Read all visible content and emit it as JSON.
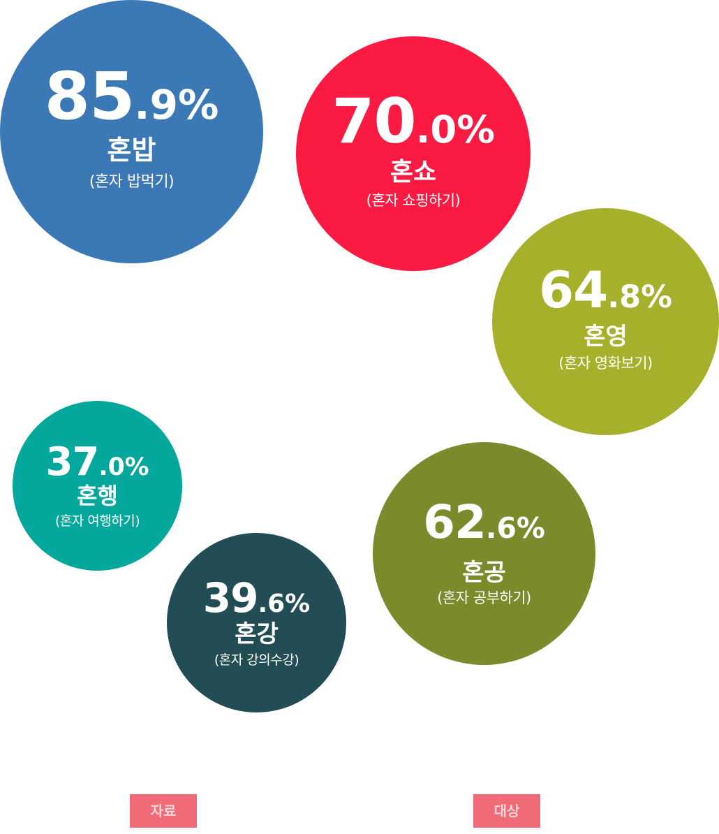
{
  "chart_data": {
    "type": "bubble",
    "series": [
      {
        "value": 85.9,
        "int": "85",
        "dec": ".9%",
        "name": "혼밥",
        "desc": "(혼자 밥먹기)",
        "color": "#3a78b6"
      },
      {
        "value": 70.0,
        "int": "70",
        "dec": ".0%",
        "name": "혼쇼",
        "desc": "(혼자 쇼핑하기)",
        "color": "#fb1b42"
      },
      {
        "value": 64.8,
        "int": "64",
        "dec": ".8%",
        "name": "혼영",
        "desc": "(혼자 영화보기)",
        "color": "#a6b02a"
      },
      {
        "value": 37.0,
        "int": "37",
        "dec": ".0%",
        "name": "혼행",
        "desc": "(혼자 여행하기)",
        "color": "#03a79c"
      },
      {
        "value": 39.6,
        "int": "39",
        "dec": ".6%",
        "name": "혼강",
        "desc": "(혼자 강의수강)",
        "color": "#224d55"
      },
      {
        "value": 62.6,
        "int": "62",
        "dec": ".6%",
        "name": "혼공",
        "desc": "(혼자 공부하기)",
        "color": "#7b8a2b"
      }
    ]
  },
  "footer": {
    "source_label": "자료",
    "target_label": "대상",
    "tag_color": "#f06b77"
  }
}
